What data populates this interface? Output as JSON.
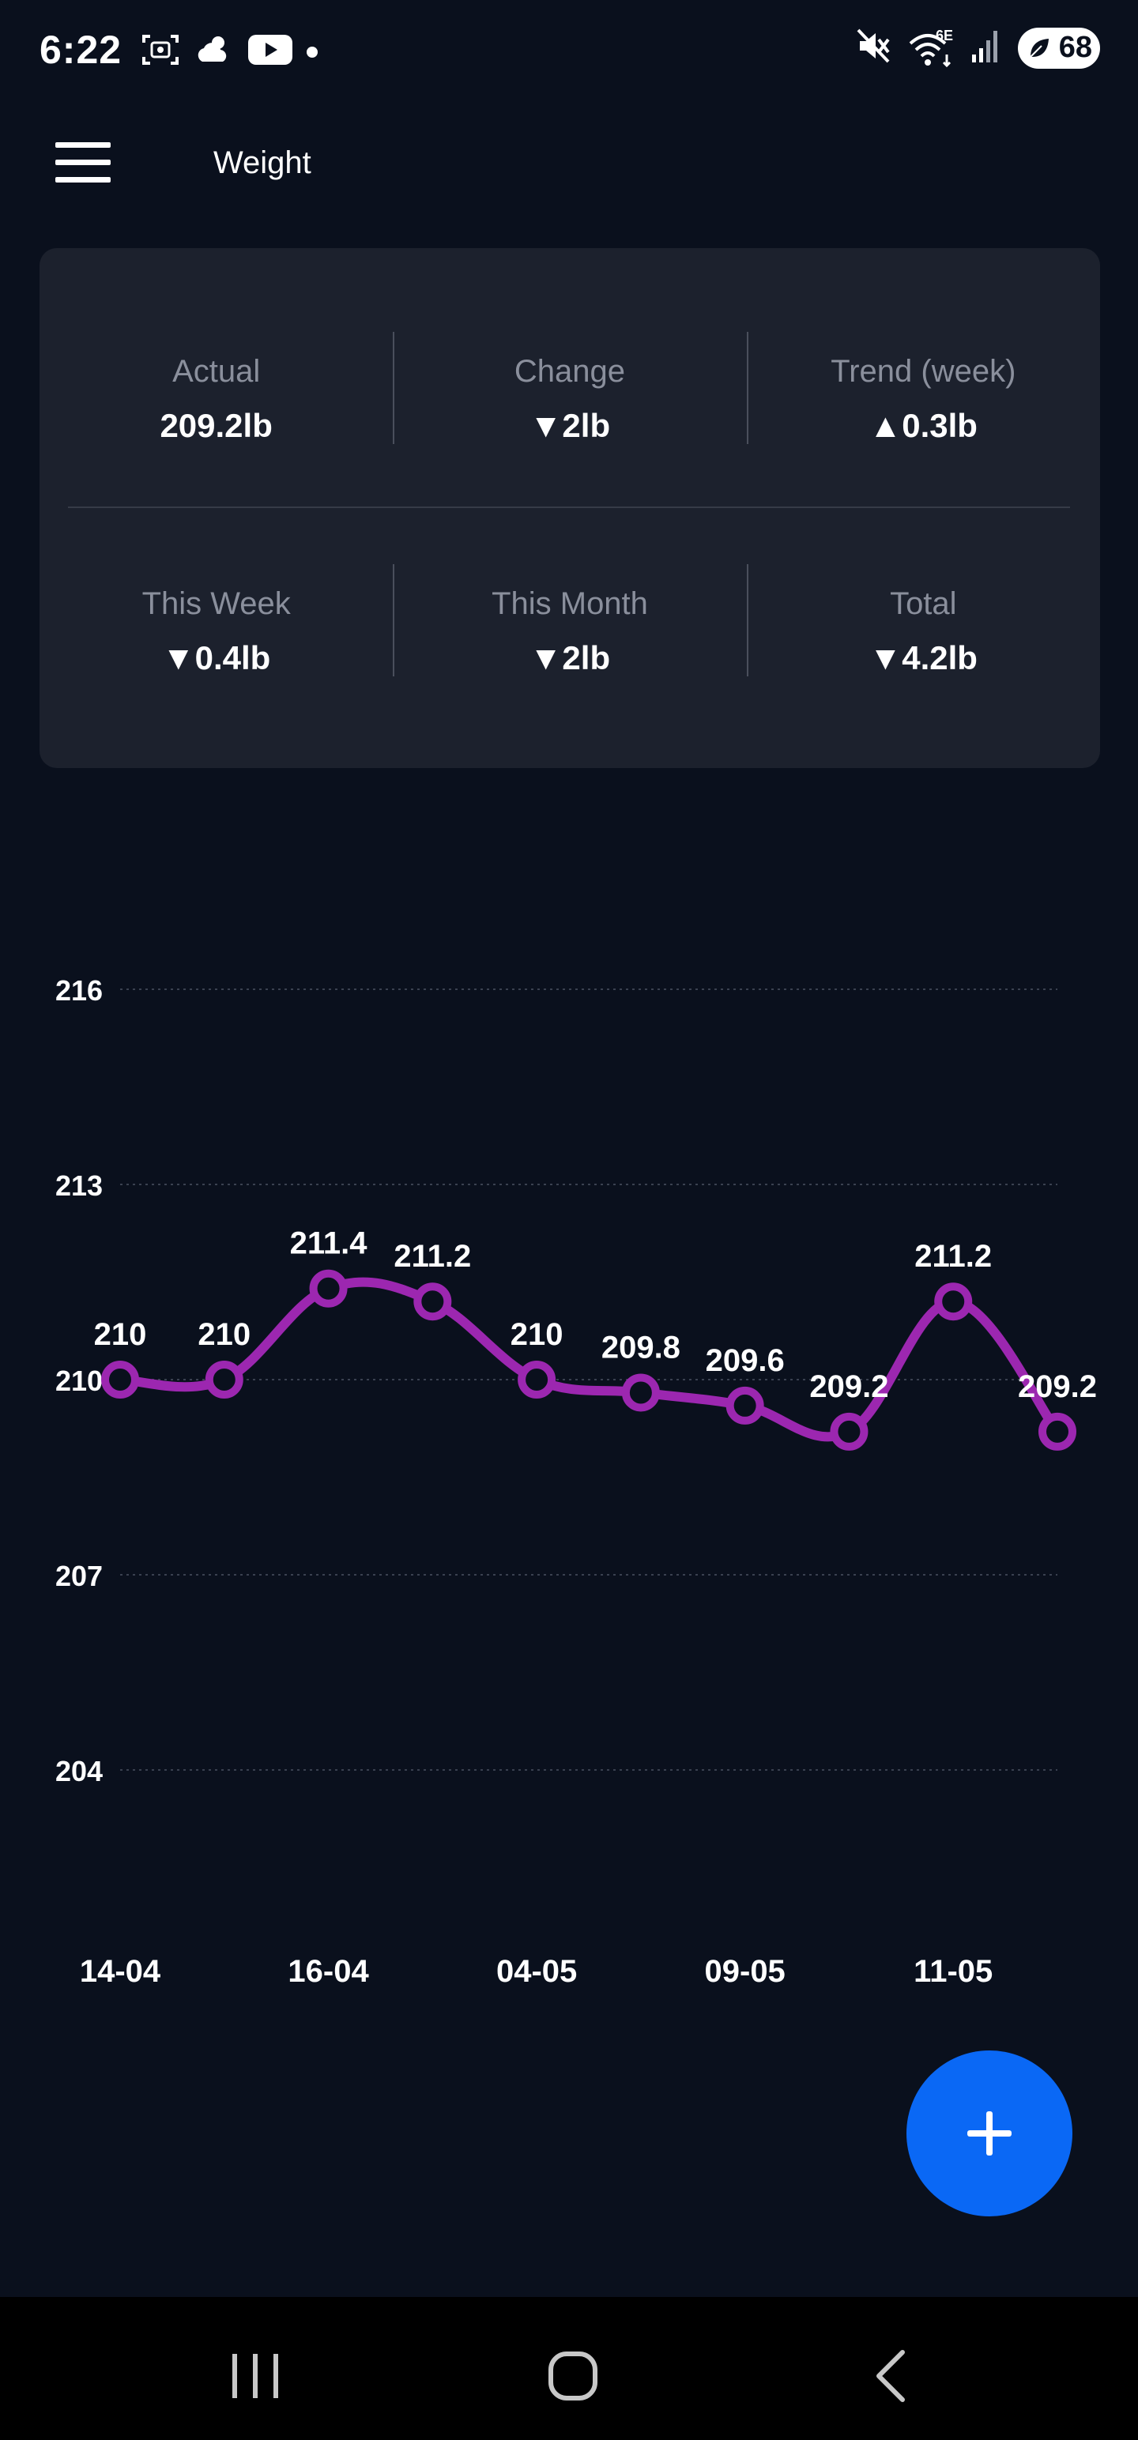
{
  "status_bar": {
    "time": "6:22",
    "battery": "68",
    "icons_left": [
      "screenshot-icon",
      "weather-icon",
      "youtube-icon",
      "notification-dot"
    ],
    "icons_right": [
      "mute-icon",
      "wifi-6e-icon",
      "signal-icon",
      "battery-icon"
    ],
    "wifi_badge": "6E"
  },
  "header": {
    "title": "Weight",
    "menu_icon": "hamburger-icon"
  },
  "stats": {
    "actual": {
      "label": "Actual",
      "value": "209.2lb"
    },
    "change": {
      "label": "Change",
      "value": "▼2lb"
    },
    "trend": {
      "label": "Trend (week)",
      "value": "▲0.3lb"
    },
    "this_week": {
      "label": "This Week",
      "value": "▼0.4lb"
    },
    "this_month": {
      "label": "This Month",
      "value": "▼2lb"
    },
    "total": {
      "label": "Total",
      "value": "▼4.2lb"
    }
  },
  "chart_data": {
    "type": "line",
    "title": "",
    "xlabel": "",
    "ylabel": "",
    "ylim": [
      204,
      216
    ],
    "y_ticks": [
      216,
      213,
      210,
      207,
      204
    ],
    "x_tick_labels": [
      "14-04",
      "16-04",
      "04-05",
      "09-05",
      "11-05"
    ],
    "x_tick_at_point_index": [
      0,
      2,
      4,
      6,
      8
    ],
    "grid": true,
    "line_color": "#9c27b0",
    "series": [
      {
        "values": [
          210,
          210,
          211.4,
          211.2,
          210,
          209.8,
          209.6,
          209.2,
          211.2,
          209.2
        ],
        "data_labels": [
          "210",
          "210",
          "211.4",
          "211.2",
          "210",
          "209.8",
          "209.6",
          "209.2",
          "211.2",
          "209.2"
        ]
      }
    ]
  },
  "fab": {
    "icon": "plus-icon"
  },
  "nav": {
    "recents_icon": "recents-icon",
    "home_icon": "home-icon",
    "back_icon": "back-icon"
  }
}
